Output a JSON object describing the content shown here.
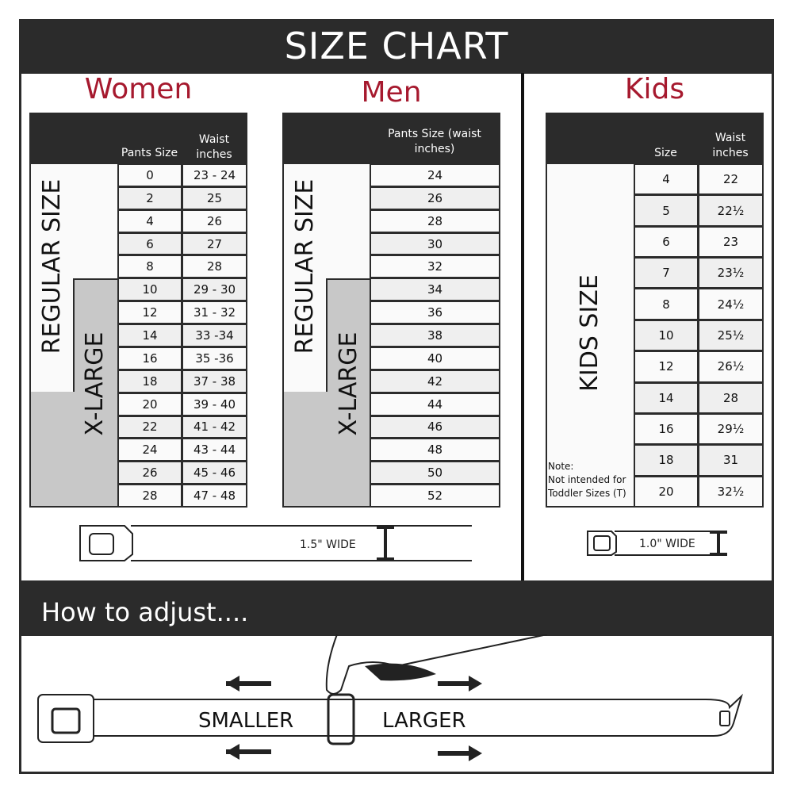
{
  "title": "SIZE CHART",
  "women": {
    "title": "Women",
    "col1": "Pants Size",
    "col2": "Waist inches",
    "regular_label": "REGULAR SIZE",
    "xlarge_label": "X-LARGE",
    "rows": [
      [
        "0",
        "23 - 24"
      ],
      [
        "2",
        "25"
      ],
      [
        "4",
        "26"
      ],
      [
        "6",
        "27"
      ],
      [
        "8",
        "28"
      ],
      [
        "10",
        "29 - 30"
      ],
      [
        "12",
        "31 - 32"
      ],
      [
        "14",
        "33 -34"
      ],
      [
        "16",
        "35 -36"
      ],
      [
        "18",
        "37 - 38"
      ],
      [
        "20",
        "39 - 40"
      ],
      [
        "22",
        "41 - 42"
      ],
      [
        "24",
        "43 - 44"
      ],
      [
        "26",
        "45 - 46"
      ],
      [
        "28",
        "47 - 48"
      ]
    ],
    "width_label": "1.5\" WIDE"
  },
  "men": {
    "title": "Men",
    "col1": "Pants Size (waist inches)",
    "regular_label": "REGULAR SIZE",
    "xlarge_label": "X-LARGE",
    "rows": [
      "24",
      "26",
      "28",
      "30",
      "32",
      "34",
      "36",
      "38",
      "40",
      "42",
      "44",
      "46",
      "48",
      "50",
      "52"
    ]
  },
  "kids": {
    "title": "Kids",
    "col1": "Size",
    "col2": "Waist inches",
    "label": "KIDS SIZE",
    "note_title": "Note:",
    "note": "Not intended for Toddler Sizes (T)",
    "rows": [
      [
        "4",
        "22"
      ],
      [
        "5",
        "22½"
      ],
      [
        "6",
        "23"
      ],
      [
        "7",
        "23½"
      ],
      [
        "8",
        "24½"
      ],
      [
        "10",
        "25½"
      ],
      [
        "12",
        "26½"
      ],
      [
        "14",
        "28"
      ],
      [
        "16",
        "29½"
      ],
      [
        "18",
        "31"
      ],
      [
        "20",
        "32½"
      ]
    ],
    "width_label": "1.0\" WIDE"
  },
  "adjust": {
    "title": "How to adjust....",
    "smaller": "SMALLER",
    "larger": "LARGER"
  },
  "colors": {
    "accent": "#a6192e",
    "dark": "#2b2b2b",
    "xlarge_fill": "#c8c8c8"
  }
}
